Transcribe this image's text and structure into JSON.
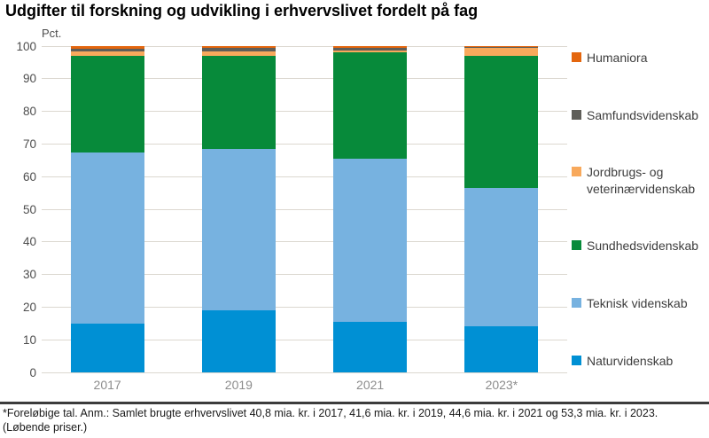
{
  "footnote": "*Foreløbige tal. Anm.: Samlet brugte erhvervslivet 40,8 mia. kr. i 2017, 41,6 mia. kr. i 2019, 44,6 mia. kr. i 2021 og 53,3 mia. kr. i 2023. (Løbende priser.)",
  "chart_data": {
    "type": "bar",
    "subtype": "stacked-100-percent",
    "title": "Udgifter til forskning og udvikling i erhvervslivet fordelt på fag",
    "ylabel": "Pct.",
    "xlabel": "",
    "ylim": [
      0,
      100
    ],
    "ytick_step": 10,
    "grid": true,
    "legend_position": "right",
    "categories": [
      "2017",
      "2019",
      "2021",
      "2023*"
    ],
    "series": [
      {
        "name": "Naturvidenskab",
        "color": "#0090d4",
        "values": [
          15.0,
          19.0,
          15.5,
          14.0
        ]
      },
      {
        "name": "Teknisk videnskab",
        "color": "#77b2e0",
        "values": [
          52.5,
          49.5,
          50.0,
          42.5
        ]
      },
      {
        "name": "Sundhedsvidenskab",
        "color": "#078a3a",
        "values": [
          29.5,
          28.6,
          32.5,
          40.4
        ]
      },
      {
        "name": "Jordbrugs- og veterinærvidenskab",
        "color": "#f8a95c",
        "values": [
          1.3,
          1.3,
          0.7,
          2.6
        ]
      },
      {
        "name": "Samfundsvidenskab",
        "color": "#5f5e59",
        "values": [
          1.0,
          1.1,
          0.8,
          0.2
        ]
      },
      {
        "name": "Humaniora",
        "color": "#e4660e",
        "values": [
          0.7,
          0.5,
          0.5,
          0.3
        ]
      }
    ],
    "legend_order_top_to_bottom": [
      "Humaniora",
      "Samfundsvidenskab",
      "Jordbrugs- og veterinærvidenskab",
      "Sundhedsvidenskab",
      "Teknisk videnskab",
      "Naturvidenskab"
    ]
  }
}
